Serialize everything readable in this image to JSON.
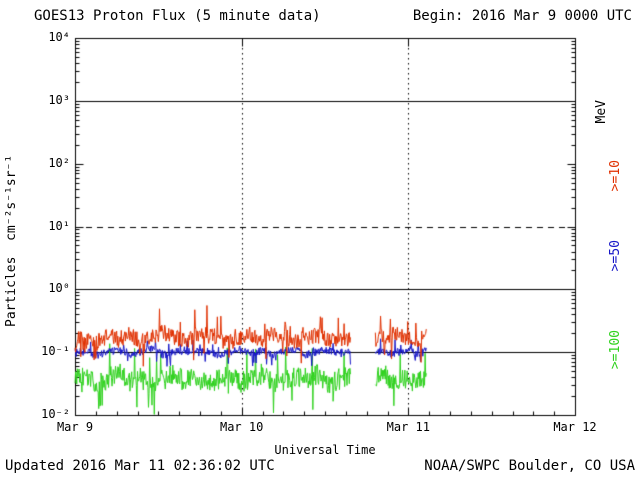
{
  "header": {
    "title": "GOES13 Proton Flux (5 minute data)",
    "begin": "Begin: 2016 Mar 9 0000 UTC"
  },
  "footer": {
    "updated": "Updated 2016 Mar 11 02:36:02 UTC",
    "source": "NOAA/SWPC Boulder, CO USA"
  },
  "chart_data": {
    "type": "line",
    "title": "GOES13 Proton Flux (5 minute data)",
    "xlabel": "Universal Time",
    "ylabel": "Particles  cm⁻²s⁻¹sr⁻¹",
    "right_axis_label": "MeV",
    "x_tick_labels": [
      "Mar 9",
      "Mar 10",
      "Mar 11",
      "Mar 12"
    ],
    "x_tick_days": [
      0,
      1,
      2,
      3
    ],
    "x_range_days": [
      0,
      3
    ],
    "y_scale": "log10",
    "y_log_range": [
      -2,
      4
    ],
    "y_tick_labels": [
      "10⁴",
      "10³",
      "10²",
      "10¹",
      "10⁰",
      "10⁻¹",
      "10⁻²"
    ],
    "y_tick_levels": [
      4,
      3,
      2,
      1,
      0,
      -1,
      -2
    ],
    "grid": "vertical dotted at day boundaries",
    "vertical_gridline_days": [
      1,
      2
    ],
    "reference_lines": [
      {
        "level_log10": 3,
        "style": "solid"
      },
      {
        "level_log10": 1,
        "style": "dashed"
      },
      {
        "level_log10": 0,
        "style": "solid"
      },
      {
        "level_log10": -1,
        "style": "solid"
      }
    ],
    "data_start_day": 0,
    "data_end_day": 2.11,
    "gaps_days": [
      [
        1.655,
        1.8
      ]
    ],
    "sample_interval": "5 minute",
    "legend_position": "right edge, rotated",
    "series": [
      {
        "name": "Protons >=10 MeV",
        "label": ">=10",
        "color": "#e13000",
        "mean_flux": 0.15,
        "flux_band": [
          0.09,
          0.38
        ],
        "spread_log10": 0.13,
        "samples_span_days": [
          0,
          2.11
        ],
        "samples_log10": [
          -0.82,
          -0.76,
          -0.85,
          -0.73,
          -0.8,
          -0.7,
          -0.84,
          -0.77,
          -0.68,
          -0.75,
          -0.83,
          -0.72,
          -0.66,
          -0.78,
          -0.85,
          -0.76,
          -0.71,
          -0.8,
          -0.69,
          -0.75,
          -0.82,
          -0.77,
          -0.72,
          -0.79,
          -0.84,
          -0.78,
          -0.73,
          -0.8,
          -0.76,
          -0.71,
          -0.77,
          -0.8,
          -0.74
        ]
      },
      {
        "name": "Protons >=50 MeV",
        "label": ">=50",
        "color": "#1616c8",
        "mean_flux": 0.1,
        "flux_band": [
          0.07,
          0.14
        ],
        "spread_log10": 0.065,
        "samples_span_days": [
          0,
          2.11
        ],
        "samples_log10": [
          -1.02,
          -0.98,
          -1.05,
          -1.0,
          -0.96,
          -1.03,
          -0.99,
          -0.95,
          -1.04,
          -1.0,
          -0.97,
          -1.02,
          -0.98,
          -1.05,
          -1.0,
          -0.96,
          -1.02,
          -0.98,
          -1.03,
          -0.99,
          -0.97,
          -1.04,
          -1.0,
          -0.96,
          -1.02,
          -0.99,
          -0.97,
          -1.03,
          -0.98,
          -1.01,
          -0.97,
          -1.02,
          -0.99
        ]
      },
      {
        "name": "Protons >=100 MeV",
        "label": ">=100",
        "color": "#2fd21e",
        "mean_flux": 0.038,
        "flux_band": [
          0.01,
          0.07
        ],
        "spread_log10": 0.17,
        "samples_span_days": [
          0,
          2.11
        ],
        "samples_log10": [
          -1.45,
          -1.36,
          -1.52,
          -1.42,
          -1.33,
          -1.49,
          -1.4,
          -1.55,
          -1.44,
          -1.35,
          -1.47,
          -1.4,
          -1.52,
          -1.43,
          -1.36,
          -1.48,
          -1.42,
          -1.34,
          -1.5,
          -1.45,
          -1.39,
          -1.47,
          -1.36,
          -1.53,
          -1.43,
          -1.38,
          -1.48,
          -1.41,
          -1.35,
          -1.46,
          -1.4,
          -1.49,
          -1.43
        ]
      }
    ]
  }
}
